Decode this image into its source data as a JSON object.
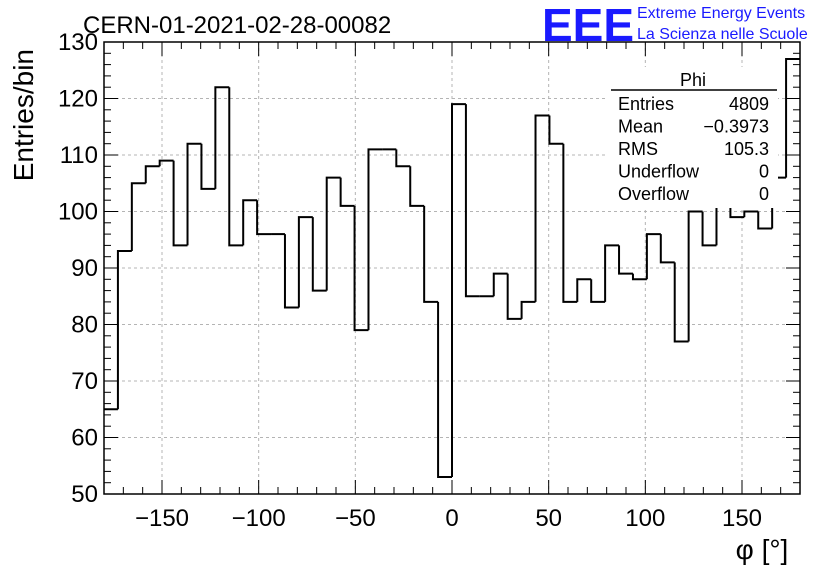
{
  "chart_data": {
    "type": "bar",
    "title": "CERN-01-2021-02-28-00082",
    "xlabel": "φ [°]",
    "ylabel": "Entries/bin",
    "xlim": [
      -180,
      180
    ],
    "ylim": [
      50,
      130
    ],
    "grid": true,
    "x_ticks": [
      -150,
      -100,
      -50,
      0,
      50,
      100,
      150
    ],
    "x_tick_labels": [
      "−150",
      "−100",
      "−50",
      "0",
      "50",
      "100",
      "150"
    ],
    "y_ticks": [
      50,
      60,
      70,
      80,
      90,
      100,
      110,
      120,
      130
    ],
    "bin_width": 7.2,
    "bin_centers": [
      -176.4,
      -169.2,
      -162.0,
      -154.8,
      -147.6,
      -140.4,
      -133.2,
      -126.0,
      -118.8,
      -111.6,
      -104.4,
      -97.2,
      -90.0,
      -82.8,
      -75.6,
      -68.4,
      -61.2,
      -54.0,
      -46.8,
      -39.6,
      -32.4,
      -25.2,
      -18.0,
      -10.8,
      -3.6,
      3.6,
      10.8,
      18.0,
      25.2,
      32.4,
      39.6,
      46.8,
      54.0,
      61.2,
      68.4,
      75.6,
      82.8,
      90.0,
      97.2,
      104.4,
      111.6,
      118.8,
      126.0,
      133.2,
      140.4,
      147.6,
      154.8,
      162.0,
      169.2,
      176.4
    ],
    "values": [
      65,
      93,
      105,
      108,
      109,
      94,
      112,
      104,
      122,
      94,
      102,
      96,
      96,
      83,
      99,
      86,
      106,
      101,
      79,
      111,
      111,
      108,
      101,
      84,
      53,
      119,
      85,
      85,
      89,
      81,
      84,
      117,
      112,
      84,
      88,
      84,
      94,
      89,
      88,
      96,
      91,
      77,
      100,
      94,
      102,
      99,
      100,
      97,
      106,
      127
    ],
    "stats": {
      "name": "Phi",
      "rows": [
        {
          "label": "Entries",
          "value": "4809"
        },
        {
          "label": "Mean",
          "value": "−0.3973"
        },
        {
          "label": "RMS",
          "value": "105.3"
        },
        {
          "label": "Underflow",
          "value": "0"
        },
        {
          "label": "Overflow",
          "value": "0"
        }
      ]
    }
  },
  "logo": {
    "mark": "EEE",
    "line1": "Extreme Energy Events",
    "line2": "La Scienza nelle Scuole"
  }
}
